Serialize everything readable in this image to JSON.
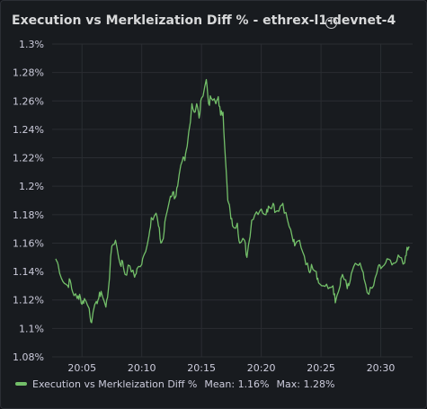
{
  "panel": {
    "title": "Execution vs Merkleization Diff % - ethrex-l1-devnet-4",
    "info_icon": "info-circle-icon"
  },
  "legend": {
    "series_name": "Execution vs Merkleization Diff %",
    "mean_label": "Mean: 1.16%",
    "max_label": "Max: 1.28%",
    "color": "#73bf69"
  },
  "chart_data": {
    "type": "line",
    "title": "Execution vs Merkleization Diff % - ethrex-l1-devnet-4",
    "xlabel": "",
    "ylabel": "",
    "ylim": [
      1.08,
      1.3
    ],
    "yticks": [
      1.08,
      1.1,
      1.12,
      1.14,
      1.16,
      1.18,
      1.2,
      1.22,
      1.24,
      1.26,
      1.28,
      1.3
    ],
    "ytick_labels": [
      "1.08%",
      "1.1%",
      "1.12%",
      "1.14%",
      "1.16%",
      "1.18%",
      "1.2%",
      "1.22%",
      "1.24%",
      "1.26%",
      "1.28%",
      "1.3%"
    ],
    "xticks": [
      "20:05",
      "20:10",
      "20:15",
      "20:20",
      "20:25",
      "20:30"
    ],
    "grid": true,
    "legend_position": "bottom-left",
    "series": [
      {
        "name": "Execution vs Merkleization Diff %",
        "color": "#73bf69",
        "x": [
          "20:02:48",
          "20:03:00",
          "20:03:24",
          "20:03:48",
          "20:04:00",
          "20:04:12",
          "20:04:36",
          "20:04:48",
          "20:05:00",
          "20:05:12",
          "20:05:36",
          "20:05:48",
          "20:06:12",
          "20:06:24",
          "20:06:36",
          "20:07:00",
          "20:07:12",
          "20:07:30",
          "20:07:48",
          "20:08:12",
          "20:08:24",
          "20:08:36",
          "20:09:00",
          "20:09:24",
          "20:09:36",
          "20:10:00",
          "20:10:12",
          "20:10:36",
          "20:10:48",
          "20:11:12",
          "20:11:24",
          "20:11:36",
          "20:11:48",
          "20:12:00",
          "20:12:24",
          "20:12:36",
          "20:12:48",
          "20:13:00",
          "20:13:24",
          "20:13:36",
          "20:13:48",
          "20:14:12",
          "20:14:24",
          "20:14:36",
          "20:14:48",
          "20:15:00",
          "20:15:24",
          "20:15:36",
          "20:15:48",
          "20:16:12",
          "20:16:24",
          "20:16:36",
          "20:16:48",
          "20:17:00",
          "20:17:12",
          "20:17:24",
          "20:17:36",
          "20:18:00",
          "20:18:12",
          "20:18:36",
          "20:18:48",
          "20:19:12",
          "20:19:36",
          "20:20:00",
          "20:20:24",
          "20:20:36",
          "20:21:00",
          "20:21:12",
          "20:21:36",
          "20:21:48",
          "20:22:12",
          "20:22:36",
          "20:22:48",
          "20:23:12",
          "20:23:36",
          "20:24:00",
          "20:24:12",
          "20:24:36",
          "20:24:48",
          "20:25:12",
          "20:25:36",
          "20:26:00",
          "20:26:12",
          "20:26:36",
          "20:26:48",
          "20:27:12",
          "20:27:24",
          "20:27:36",
          "20:28:00",
          "20:28:24",
          "20:28:36",
          "20:29:00",
          "20:29:24",
          "20:29:48",
          "20:30:00",
          "20:30:24",
          "20:30:48",
          "20:31:12",
          "20:31:36",
          "20:32:00",
          "20:32:12",
          "20:32:24"
        ],
        "values": [
          1.149,
          1.145,
          1.133,
          1.13,
          1.134,
          1.126,
          1.121,
          1.124,
          1.117,
          1.121,
          1.114,
          1.104,
          1.119,
          1.121,
          1.126,
          1.115,
          1.127,
          1.158,
          1.162,
          1.145,
          1.147,
          1.138,
          1.144,
          1.136,
          1.142,
          1.145,
          1.152,
          1.165,
          1.178,
          1.181,
          1.172,
          1.16,
          1.163,
          1.178,
          1.193,
          1.196,
          1.192,
          1.2,
          1.218,
          1.218,
          1.228,
          1.258,
          1.252,
          1.258,
          1.248,
          1.262,
          1.275,
          1.258,
          1.262,
          1.258,
          1.263,
          1.25,
          1.252,
          1.22,
          1.19,
          1.182,
          1.172,
          1.174,
          1.16,
          1.162,
          1.15,
          1.176,
          1.182,
          1.184,
          1.18,
          1.186,
          1.188,
          1.182,
          1.186,
          1.188,
          1.176,
          1.164,
          1.158,
          1.162,
          1.151,
          1.14,
          1.145,
          1.14,
          1.132,
          1.13,
          1.128,
          1.13,
          1.118,
          1.13,
          1.138,
          1.128,
          1.132,
          1.14,
          1.145,
          1.142,
          1.135,
          1.124,
          1.13,
          1.144,
          1.142,
          1.146,
          1.148,
          1.146,
          1.15,
          1.146,
          1.157,
          1.157
        ]
      }
    ]
  }
}
